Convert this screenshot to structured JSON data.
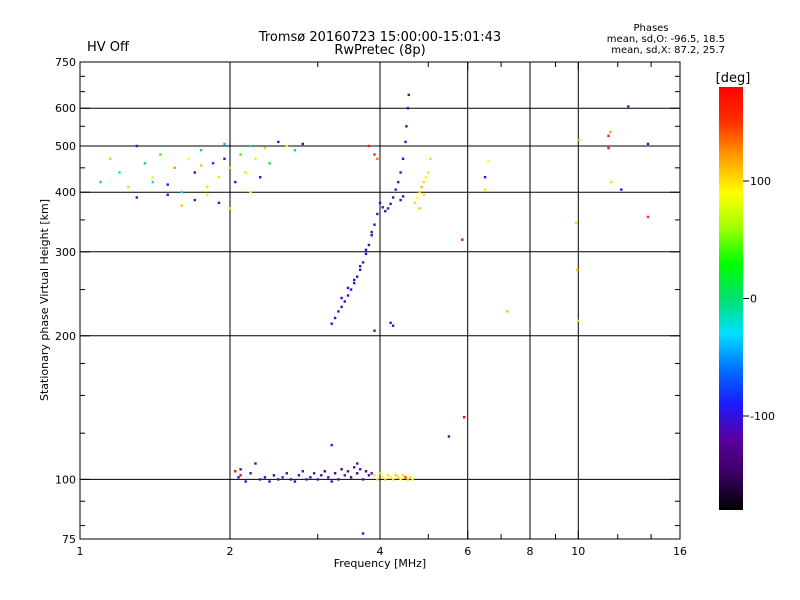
{
  "header": {
    "title": "Tromsø 20160723 15:00:00-15:01:43",
    "subtitle": "RwPretec (8p)",
    "status": "HV Off",
    "status_color": "#e00000"
  },
  "phase_stats": {
    "heading": "Phases",
    "line_o": "mean, sd,O: -96.5, 18.5",
    "line_x": "mean, sd,X:  87.2, 25.7"
  },
  "colorbar": {
    "label": "[deg]",
    "range": [
      -180,
      180
    ],
    "ticks": [
      {
        "value": 100,
        "label": "100"
      },
      {
        "value": 0,
        "label": "0"
      },
      {
        "value": -100,
        "label": "-100"
      }
    ],
    "colors": [
      "#000000",
      "#3a0060",
      "#5a00a0",
      "#1a1aff",
      "#0070ff",
      "#00e0ff",
      "#00e070",
      "#00ff00",
      "#a0ff00",
      "#ffff00",
      "#ffa000",
      "#ff3000",
      "#ff0000"
    ]
  },
  "chart_data": {
    "type": "scatter",
    "xlabel": "Frequency [MHz]",
    "ylabel": "Stationary phase Virtual Height [km]",
    "x_scale": "log",
    "y_scale": "log",
    "xlim": [
      1,
      16
    ],
    "ylim": [
      75,
      750
    ],
    "x_ticks": [
      {
        "value": 1,
        "label": "1"
      },
      {
        "value": 2,
        "label": "2"
      },
      {
        "value": 4,
        "label": "4"
      },
      {
        "value": 6,
        "label": "6"
      },
      {
        "value": 8,
        "label": "8"
      },
      {
        "value": 10,
        "label": "10"
      },
      {
        "value": 16,
        "label": "16"
      }
    ],
    "x_gridlines": [
      2,
      4,
      6,
      8,
      10
    ],
    "x_minor_ticks": [
      3,
      5,
      7,
      9,
      12,
      14
    ],
    "y_ticks": [
      {
        "value": 75,
        "label": "75"
      },
      {
        "value": 100,
        "label": "100"
      },
      {
        "value": 200,
        "label": "200"
      },
      {
        "value": 300,
        "label": "300"
      },
      {
        "value": 400,
        "label": "400"
      },
      {
        "value": 500,
        "label": "500"
      },
      {
        "value": 600,
        "label": "600"
      },
      {
        "value": 750,
        "label": "750"
      }
    ],
    "y_gridlines": [
      100,
      200,
      300,
      400,
      500,
      600
    ],
    "y_minor_ticks": [
      80,
      90,
      125,
      150,
      175,
      250,
      350,
      450,
      550,
      650,
      700
    ],
    "grid": true,
    "colorbar_variable": "phase [deg]",
    "series": [
      {
        "values": [
          [
            2.05,
            104,
            -100
          ],
          [
            2.08,
            101,
            -110
          ],
          [
            2.1,
            105,
            -120
          ],
          [
            2.15,
            99,
            -100
          ],
          [
            2.2,
            103,
            -110
          ],
          [
            2.25,
            108,
            -120
          ],
          [
            2.3,
            100,
            -90
          ],
          [
            2.35,
            101,
            -100
          ],
          [
            2.4,
            99,
            -110
          ],
          [
            2.45,
            102,
            -120
          ],
          [
            2.5,
            100,
            -100
          ],
          [
            2.55,
            101,
            -80
          ],
          [
            2.6,
            103,
            -110
          ],
          [
            2.65,
            100,
            -120
          ],
          [
            2.7,
            99,
            -100
          ],
          [
            2.75,
            102,
            -110
          ],
          [
            2.8,
            104,
            -90
          ],
          [
            2.85,
            100,
            -100
          ],
          [
            2.9,
            101,
            -120
          ],
          [
            2.95,
            103,
            -110
          ],
          [
            3.0,
            100,
            -100
          ],
          [
            3.05,
            102,
            -130
          ],
          [
            3.1,
            104,
            -140
          ],
          [
            3.15,
            101,
            -100
          ],
          [
            3.2,
            99,
            -110
          ],
          [
            3.25,
            103,
            -130
          ],
          [
            3.3,
            100,
            -120
          ],
          [
            3.35,
            105,
            -140
          ],
          [
            3.4,
            102,
            -100
          ],
          [
            3.45,
            104,
            -110
          ],
          [
            3.5,
            101,
            -130
          ],
          [
            3.55,
            106,
            -120
          ],
          [
            3.6,
            103,
            -140
          ],
          [
            3.65,
            105,
            -100
          ],
          [
            3.7,
            100,
            -110
          ],
          [
            3.75,
            104,
            -130
          ],
          [
            3.8,
            102,
            -120
          ],
          [
            3.85,
            103,
            -110
          ],
          [
            3.2,
            118,
            -100
          ],
          [
            3.6,
            108,
            -100
          ]
        ]
      },
      {
        "values": [
          [
            3.9,
            102,
            80
          ],
          [
            3.95,
            100,
            100
          ],
          [
            4.0,
            103,
            60
          ],
          [
            4.05,
            101,
            90
          ],
          [
            4.1,
            100,
            110
          ],
          [
            4.15,
            102,
            100
          ],
          [
            4.2,
            101,
            90
          ],
          [
            4.25,
            100,
            100
          ],
          [
            4.3,
            102,
            110
          ],
          [
            4.35,
            101,
            100
          ],
          [
            4.4,
            100,
            90
          ],
          [
            4.45,
            102,
            100
          ],
          [
            4.5,
            101,
            100
          ],
          [
            4.55,
            100,
            110
          ],
          [
            4.6,
            101,
            100
          ],
          [
            4.65,
            100,
            95
          ]
        ]
      },
      {
        "values": [
          [
            2.05,
            104,
            160
          ],
          [
            2.1,
            102,
            180
          ],
          [
            4.5,
            101,
            140
          ],
          [
            5.9,
            135,
            180
          ],
          [
            5.85,
            318,
            170
          ],
          [
            7.2,
            225,
            110
          ]
        ]
      },
      {
        "values": [
          [
            3.2,
            212,
            -110
          ],
          [
            3.25,
            218,
            -110
          ],
          [
            3.3,
            225,
            -100
          ],
          [
            3.35,
            230,
            -110
          ],
          [
            3.4,
            236,
            -110
          ],
          [
            3.45,
            243,
            -100
          ],
          [
            3.5,
            250,
            -110
          ],
          [
            3.55,
            258,
            -100
          ],
          [
            3.6,
            266,
            -110
          ],
          [
            3.65,
            275,
            -100
          ],
          [
            3.7,
            285,
            -110
          ],
          [
            3.75,
            297,
            -100
          ],
          [
            3.8,
            310,
            -110
          ],
          [
            3.85,
            325,
            -100
          ],
          [
            3.9,
            342,
            -110
          ],
          [
            3.95,
            360,
            -100
          ],
          [
            4.0,
            380,
            -110
          ],
          [
            4.05,
            372,
            -100
          ],
          [
            4.1,
            365,
            -110
          ],
          [
            4.15,
            370,
            -100
          ],
          [
            4.2,
            378,
            -110
          ],
          [
            4.25,
            390,
            -100
          ],
          [
            4.3,
            405,
            -110
          ],
          [
            4.35,
            420,
            -100
          ],
          [
            4.4,
            440,
            -110
          ],
          [
            4.45,
            470,
            -100
          ],
          [
            4.5,
            510,
            -110
          ],
          [
            4.52,
            550,
            -100
          ],
          [
            4.55,
            600,
            -110
          ],
          [
            4.57,
            640,
            -100
          ],
          [
            3.35,
            240,
            -100
          ],
          [
            3.45,
            252,
            -110
          ],
          [
            3.55,
            262,
            -100
          ],
          [
            3.65,
            280,
            -110
          ],
          [
            3.75,
            303,
            -100
          ],
          [
            3.85,
            330,
            -110
          ],
          [
            3.9,
            205,
            -100
          ],
          [
            4.2,
            213,
            -100
          ],
          [
            4.25,
            210,
            -110
          ],
          [
            4.4,
            385,
            -100
          ],
          [
            4.45,
            392,
            -110
          ],
          [
            5.5,
            123,
            -100
          ],
          [
            6.5,
            430,
            -100
          ],
          [
            12.6,
            605,
            -100
          ],
          [
            12.2,
            405,
            -100
          ],
          [
            13.8,
            505,
            -100
          ],
          [
            3.7,
            77,
            -100
          ]
        ]
      },
      {
        "values": [
          [
            1.1,
            420,
            20
          ],
          [
            1.15,
            470,
            60
          ],
          [
            1.2,
            440,
            -20
          ],
          [
            1.25,
            410,
            100
          ],
          [
            1.3,
            500,
            -100
          ],
          [
            1.35,
            460,
            0
          ],
          [
            1.4,
            430,
            80
          ],
          [
            1.45,
            480,
            40
          ],
          [
            1.5,
            415,
            -100
          ],
          [
            1.55,
            450,
            120
          ],
          [
            1.6,
            400,
            -30
          ],
          [
            1.65,
            470,
            90
          ],
          [
            1.7,
            440,
            -110
          ],
          [
            1.75,
            490,
            10
          ],
          [
            1.8,
            410,
            100
          ],
          [
            1.85,
            460,
            -80
          ],
          [
            1.9,
            430,
            70
          ],
          [
            1.95,
            505,
            -40
          ],
          [
            2.0,
            450,
            110
          ],
          [
            2.05,
            420,
            -100
          ],
          [
            2.1,
            480,
            40
          ],
          [
            2.15,
            440,
            100
          ],
          [
            2.2,
            500,
            -20
          ],
          [
            2.25,
            470,
            80
          ],
          [
            2.3,
            430,
            -100
          ],
          [
            2.35,
            495,
            60
          ],
          [
            2.4,
            460,
            20
          ],
          [
            2.5,
            510,
            -100
          ],
          [
            2.6,
            500,
            80
          ],
          [
            2.7,
            490,
            0
          ],
          [
            2.8,
            505,
            -100
          ],
          [
            1.3,
            390,
            -100
          ],
          [
            1.5,
            395,
            -110
          ],
          [
            1.7,
            385,
            -100
          ],
          [
            1.8,
            395,
            80
          ],
          [
            2.0,
            370,
            100
          ],
          [
            1.9,
            380,
            -100
          ],
          [
            2.2,
            400,
            90
          ],
          [
            1.6,
            375,
            110
          ],
          [
            1.4,
            420,
            -20
          ],
          [
            1.75,
            455,
            110
          ],
          [
            1.95,
            470,
            -100
          ]
        ]
      },
      {
        "values": [
          [
            4.7,
            380,
            100
          ],
          [
            4.75,
            390,
            90
          ],
          [
            4.8,
            400,
            100
          ],
          [
            4.85,
            410,
            110
          ],
          [
            4.9,
            420,
            100
          ],
          [
            4.95,
            430,
            90
          ],
          [
            5.0,
            440,
            100
          ],
          [
            4.8,
            370,
            110
          ],
          [
            4.9,
            395,
            100
          ],
          [
            5.05,
            470,
            100
          ],
          [
            6.5,
            405,
            100
          ],
          [
            6.6,
            465,
            90
          ],
          [
            9.9,
            345,
            100
          ],
          [
            9.95,
            275,
            110
          ],
          [
            10.0,
            215,
            100
          ],
          [
            10.05,
            515,
            80
          ],
          [
            11.5,
            525,
            160
          ],
          [
            11.6,
            535,
            120
          ],
          [
            11.65,
            420,
            100
          ],
          [
            11.5,
            495,
            170
          ],
          [
            13.8,
            355,
            150
          ],
          [
            3.95,
            470,
            130
          ],
          [
            3.9,
            480,
            160
          ],
          [
            3.8,
            500,
            170
          ]
        ]
      }
    ]
  }
}
